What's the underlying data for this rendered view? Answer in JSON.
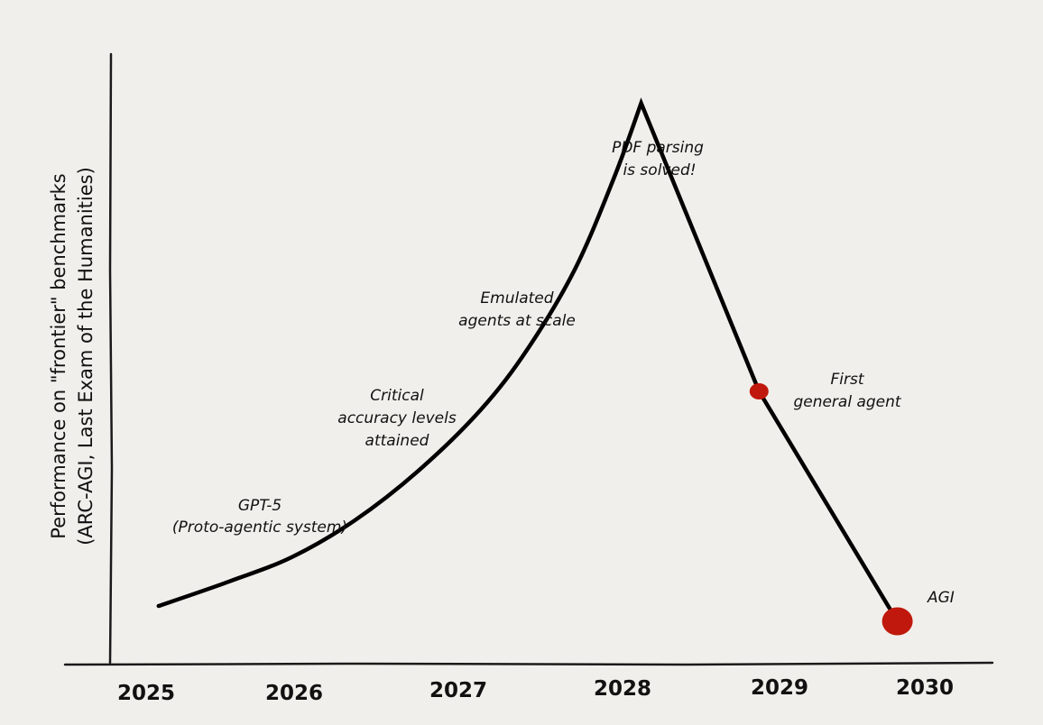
{
  "chart_data": {
    "type": "line",
    "title": "",
    "xlabel": "",
    "ylabel_lines": [
      "Performance on \"frontier\" benchmarks",
      "(ARC-AGI, Last Exam of the Humanities)"
    ],
    "x_ticks": [
      "2025",
      "2026",
      "2027",
      "2028",
      "2029",
      "2030"
    ],
    "xlim": [
      2024.6,
      2030.3
    ],
    "ylim": [
      0,
      1
    ],
    "grid": false,
    "legend": "none",
    "series": [
      {
        "points": [
          {
            "x": 2025.15,
            "y": 0.1
          },
          {
            "x": 2025.6,
            "y": 0.14
          },
          {
            "x": 2026.0,
            "y": 0.18
          },
          {
            "x": 2026.4,
            "y": 0.24
          },
          {
            "x": 2026.8,
            "y": 0.32
          },
          {
            "x": 2027.2,
            "y": 0.42
          },
          {
            "x": 2027.5,
            "y": 0.52
          },
          {
            "x": 2027.8,
            "y": 0.65
          },
          {
            "x": 2028.05,
            "y": 0.8
          },
          {
            "x": 2028.22,
            "y": 0.92
          },
          {
            "x": 2028.97,
            "y": 0.45
          },
          {
            "x": 2029.85,
            "y": 0.075
          }
        ]
      }
    ],
    "markers": [
      {
        "x": 2028.97,
        "y": 0.45,
        "size": "small"
      },
      {
        "x": 2029.85,
        "y": 0.075,
        "size": "large"
      }
    ],
    "annotations": [
      {
        "lines": [
          "GPT-5",
          "(Proto-agentic system)"
        ]
      },
      {
        "lines": [
          "Critical",
          "accuracy levels",
          "attained"
        ]
      },
      {
        "lines": [
          "Emulated",
          "agents at scale"
        ]
      },
      {
        "lines": [
          "PDF parsing",
          "is solved!"
        ]
      },
      {
        "lines": [
          "First",
          "general agent"
        ]
      },
      {
        "lines": [
          "AGI"
        ]
      }
    ],
    "colors": {
      "background": "#f1efeb",
      "line": "#000000",
      "marker": "#c0180c",
      "axis": "#1a1a1a"
    }
  }
}
